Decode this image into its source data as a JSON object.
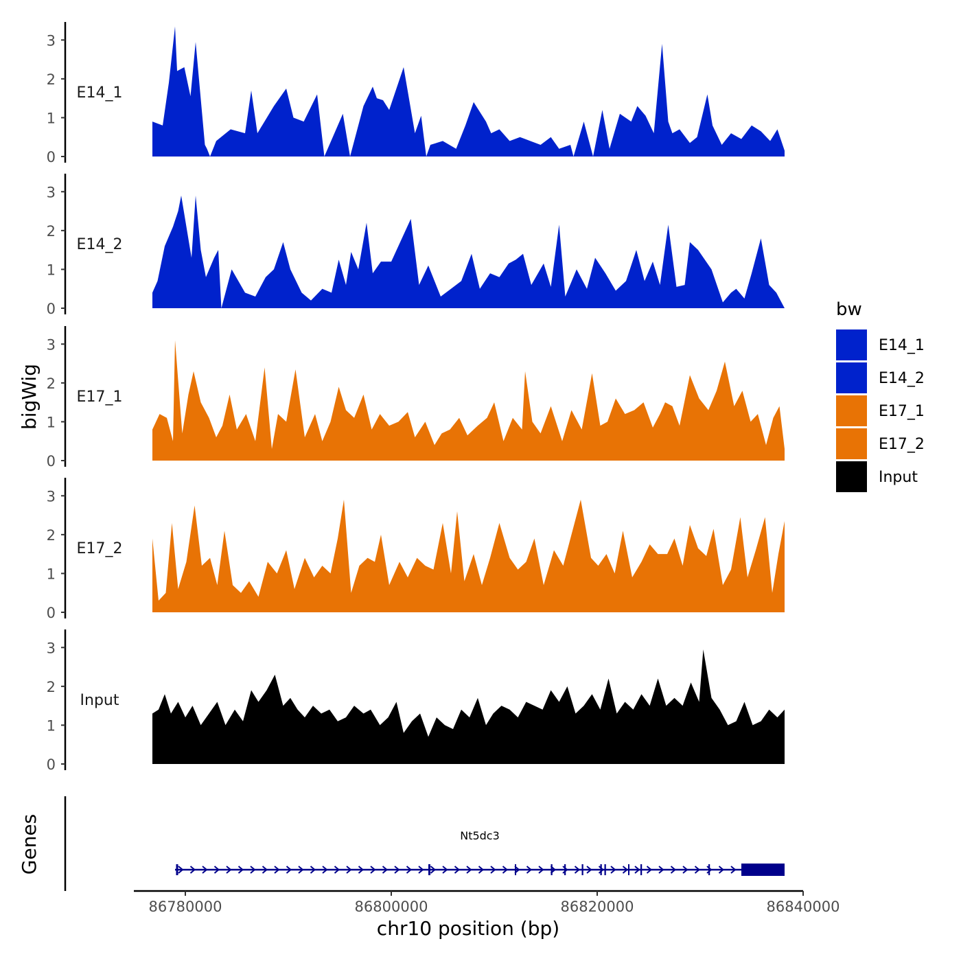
{
  "chart_data": {
    "type": "area",
    "title": "",
    "ylabel": "bigWig",
    "xlabel": "chr10 position (bp)",
    "genes_label": "Genes",
    "xlim": [
      86775000,
      86840000
    ],
    "data_range": [
      86776800,
      86838200
    ],
    "ylim": [
      0,
      3.5
    ],
    "y_ticks": [
      0,
      1,
      2,
      3
    ],
    "y_tick_labels": [
      "0",
      "1",
      "2",
      "3"
    ],
    "x_ticks": [
      86780000,
      86800000,
      86820000,
      86840000
    ],
    "x_tick_labels": [
      "86780000",
      "86800000",
      "86820000",
      "86840000"
    ],
    "legend": {
      "title": "bw",
      "placement": "right",
      "entries": [
        {
          "label": "E14_1",
          "color": "#0022CC"
        },
        {
          "label": "E14_2",
          "color": "#0022CC"
        },
        {
          "label": "E17_1",
          "color": "#E87305"
        },
        {
          "label": "E17_2",
          "color": "#E87305"
        },
        {
          "label": "Input",
          "color": "#000000"
        }
      ]
    },
    "series": [
      {
        "name": "E14_1",
        "color": "#0022CC",
        "x": [
          86776800,
          86777800,
          86778400,
          86779000,
          86779200,
          86779900,
          86780500,
          86781000,
          86781900,
          86782100,
          86782400,
          86783000,
          86784400,
          86785800,
          86786400,
          86787000,
          86788600,
          86789800,
          86790500,
          86791500,
          86792800,
          86793500,
          86795300,
          86796000,
          86797300,
          86798200,
          86798600,
          86799200,
          86799800,
          86801200,
          86802300,
          86802900,
          86803400,
          86803800,
          86805000,
          86806300,
          86807200,
          86808000,
          86809200,
          86809700,
          86810500,
          86811500,
          86812500,
          86813500,
          86814500,
          86815500,
          86816300,
          86817400,
          86817700,
          86818700,
          86819600,
          86820500,
          86821200,
          86822200,
          86823300,
          86823900,
          86824700,
          86825500,
          86826300,
          86826900,
          86827300,
          86828000,
          86829000,
          86829700,
          86830700,
          86831200,
          86832100,
          86833000,
          86834000,
          86835000,
          86835900,
          86836800,
          86837500,
          86838200
        ],
        "values": [
          0.9,
          0.8,
          1.9,
          3.35,
          2.2,
          2.3,
          1.55,
          2.95,
          0.3,
          0.2,
          0.0,
          0.4,
          0.7,
          0.6,
          1.7,
          0.6,
          1.3,
          1.75,
          1.0,
          0.9,
          1.6,
          0.0,
          1.1,
          0.0,
          1.3,
          1.8,
          1.5,
          1.45,
          1.2,
          2.3,
          0.6,
          1.05,
          0.0,
          0.3,
          0.4,
          0.2,
          0.8,
          1.4,
          0.9,
          0.6,
          0.7,
          0.4,
          0.5,
          0.4,
          0.3,
          0.5,
          0.2,
          0.3,
          0.0,
          0.9,
          0.0,
          1.2,
          0.2,
          1.1,
          0.9,
          1.3,
          1.05,
          0.6,
          2.9,
          0.9,
          0.6,
          0.7,
          0.35,
          0.5,
          1.6,
          0.8,
          0.3,
          0.6,
          0.45,
          0.8,
          0.65,
          0.4,
          0.7,
          0.15
        ]
      },
      {
        "name": "E14_2",
        "color": "#0022CC",
        "x": [
          86776800,
          86777300,
          86778000,
          86778800,
          86779300,
          86779600,
          86780600,
          86781000,
          86781500,
          86782000,
          86782800,
          86783200,
          86783500,
          86784500,
          86785800,
          86786800,
          86787800,
          86788600,
          86789500,
          86790200,
          86791300,
          86792200,
          86793300,
          86794200,
          86794900,
          86795600,
          86796100,
          86796800,
          86797600,
          86798200,
          86799000,
          86800000,
          86801900,
          86802700,
          86803600,
          86804800,
          86805800,
          86806800,
          86807800,
          86808600,
          86809600,
          86810500,
          86811400,
          86812100,
          86812800,
          86813600,
          86814800,
          86815500,
          86816300,
          86816900,
          86818000,
          86819000,
          86819800,
          86820800,
          86821800,
          86822800,
          86823800,
          86824600,
          86825400,
          86826100,
          86826900,
          86827700,
          86828500,
          86829000,
          86829800,
          86831100,
          86832200,
          86833000,
          86833500,
          86834300,
          86835000,
          86835900,
          86836700,
          86837400,
          86838200
        ],
        "values": [
          0.4,
          0.7,
          1.6,
          2.1,
          2.5,
          2.9,
          1.3,
          2.9,
          1.5,
          0.8,
          1.3,
          1.5,
          0.0,
          1.0,
          0.4,
          0.3,
          0.8,
          1.0,
          1.7,
          1.0,
          0.4,
          0.2,
          0.5,
          0.4,
          1.25,
          0.6,
          1.45,
          1.0,
          2.2,
          0.9,
          1.2,
          1.2,
          2.3,
          0.6,
          1.1,
          0.3,
          0.5,
          0.7,
          1.4,
          0.5,
          0.9,
          0.8,
          1.15,
          1.25,
          1.4,
          0.6,
          1.15,
          0.55,
          2.15,
          0.3,
          1.0,
          0.5,
          1.3,
          0.9,
          0.45,
          0.7,
          1.5,
          0.7,
          1.2,
          0.6,
          2.15,
          0.55,
          0.6,
          1.7,
          1.5,
          1.0,
          0.15,
          0.4,
          0.5,
          0.25,
          0.9,
          1.8,
          0.6,
          0.4,
          0.0
        ]
      },
      {
        "name": "E17_1",
        "color": "#E87305",
        "x": [
          86776800,
          86777500,
          86778200,
          86778800,
          86779000,
          86779700,
          86780300,
          86780800,
          86781500,
          86782300,
          86783000,
          86783600,
          86784300,
          86785000,
          86785900,
          86786800,
          86787700,
          86788400,
          86789000,
          86789800,
          86790700,
          86791600,
          86792600,
          86793300,
          86794100,
          86794900,
          86795600,
          86796400,
          86797300,
          86798100,
          86798900,
          86799800,
          86800700,
          86801600,
          86802300,
          86803300,
          86804200,
          86804900,
          86805700,
          86806600,
          86807400,
          86808400,
          86809300,
          86810000,
          86810900,
          86811800,
          86812700,
          86813000,
          86813700,
          86814500,
          86815500,
          86816600,
          86817500,
          86818500,
          86819500,
          86820300,
          86821000,
          86821800,
          86822700,
          86823600,
          86824500,
          86825400,
          86826100,
          86826600,
          86827300,
          86828000,
          86829000,
          86829900,
          86830800,
          86831600,
          86832400,
          86833300,
          86834100,
          86834900,
          86835600,
          86836400,
          86837100,
          86837700,
          86838200
        ],
        "values": [
          0.8,
          1.2,
          1.1,
          0.5,
          3.1,
          0.7,
          1.7,
          2.3,
          1.5,
          1.1,
          0.6,
          0.9,
          1.7,
          0.8,
          1.2,
          0.5,
          2.4,
          0.3,
          1.2,
          1.0,
          2.35,
          0.6,
          1.2,
          0.5,
          1.0,
          1.9,
          1.3,
          1.1,
          1.7,
          0.8,
          1.2,
          0.9,
          1.0,
          1.25,
          0.6,
          1.0,
          0.4,
          0.7,
          0.8,
          1.1,
          0.65,
          0.9,
          1.1,
          1.5,
          0.5,
          1.1,
          0.8,
          2.3,
          1.0,
          0.7,
          1.4,
          0.5,
          1.3,
          0.8,
          2.25,
          0.9,
          1.0,
          1.6,
          1.2,
          1.3,
          1.5,
          0.85,
          1.2,
          1.5,
          1.4,
          0.9,
          2.2,
          1.6,
          1.3,
          1.8,
          2.55,
          1.4,
          1.8,
          1.0,
          1.2,
          0.4,
          1.1,
          1.4,
          0.3
        ]
      },
      {
        "name": "E17_2",
        "color": "#E87305",
        "x": [
          86776800,
          86777400,
          86778100,
          86778700,
          86779300,
          86780100,
          86780900,
          86781600,
          86782400,
          86783100,
          86783800,
          86784600,
          86785400,
          86786200,
          86787100,
          86788000,
          86788900,
          86789800,
          86790600,
          86791600,
          86792500,
          86793300,
          86794100,
          86794800,
          86795400,
          86796100,
          86796900,
          86797700,
          86798400,
          86799000,
          86799800,
          86800800,
          86801600,
          86802500,
          86803300,
          86804100,
          86805000,
          86805800,
          86806400,
          86807100,
          86808000,
          86808800,
          86809600,
          86810500,
          86811500,
          86812300,
          86813100,
          86813900,
          86814800,
          86815800,
          86816700,
          86817500,
          86818400,
          86819400,
          86820100,
          86820900,
          86821700,
          86822500,
          86823400,
          86824300,
          86825100,
          86825900,
          86826800,
          86827500,
          86828300,
          86829000,
          86829800,
          86830600,
          86831300,
          86832200,
          86833000,
          86833900,
          86834600,
          86835400,
          86836300,
          86837000,
          86837600,
          86838200
        ],
        "values": [
          1.9,
          0.3,
          0.5,
          2.3,
          0.6,
          1.3,
          2.75,
          1.2,
          1.4,
          0.7,
          2.1,
          0.7,
          0.5,
          0.8,
          0.4,
          1.3,
          1.0,
          1.6,
          0.6,
          1.4,
          0.9,
          1.2,
          1.0,
          1.9,
          2.9,
          0.5,
          1.2,
          1.4,
          1.3,
          2.0,
          0.7,
          1.3,
          0.9,
          1.4,
          1.2,
          1.1,
          2.3,
          1.0,
          2.6,
          0.8,
          1.5,
          0.7,
          1.4,
          2.3,
          1.4,
          1.1,
          1.3,
          1.9,
          0.7,
          1.6,
          1.2,
          2.0,
          2.9,
          1.4,
          1.2,
          1.5,
          1.0,
          2.1,
          0.9,
          1.3,
          1.75,
          1.5,
          1.5,
          1.9,
          1.2,
          2.25,
          1.65,
          1.45,
          2.15,
          0.7,
          1.1,
          2.45,
          0.9,
          1.6,
          2.45,
          0.5,
          1.5,
          2.35
        ]
      },
      {
        "name": "Input",
        "color": "#000000",
        "x": [
          86776800,
          86777400,
          86778000,
          86778600,
          86779300,
          86780000,
          86780700,
          86781500,
          86782300,
          86783100,
          86783900,
          86784800,
          86785600,
          86786400,
          86787100,
          86787900,
          86788700,
          86789500,
          86790200,
          86790900,
          86791600,
          86792400,
          86793200,
          86794000,
          86794800,
          86795600,
          86796400,
          86797300,
          86798000,
          86798900,
          86799700,
          86800500,
          86801200,
          86802000,
          86802800,
          86803600,
          86804400,
          86805200,
          86806000,
          86806800,
          86807600,
          86808400,
          86809200,
          86809900,
          86810700,
          86811500,
          86812300,
          86813100,
          86813900,
          86814700,
          86815500,
          86816300,
          86817100,
          86817900,
          86818700,
          86819500,
          86820300,
          86821100,
          86821900,
          86822700,
          86823500,
          86824300,
          86825100,
          86825900,
          86826700,
          86827500,
          86828300,
          86829100,
          86829900,
          86830300,
          86831100,
          86831900,
          86832700,
          86833500,
          86834300,
          86835100,
          86835900,
          86836700,
          86837500,
          86838200
        ],
        "values": [
          1.3,
          1.4,
          1.8,
          1.3,
          1.6,
          1.2,
          1.5,
          1.0,
          1.3,
          1.6,
          1.0,
          1.4,
          1.1,
          1.9,
          1.6,
          1.9,
          2.3,
          1.5,
          1.7,
          1.4,
          1.2,
          1.5,
          1.3,
          1.4,
          1.1,
          1.2,
          1.5,
          1.3,
          1.4,
          1.0,
          1.2,
          1.6,
          0.8,
          1.1,
          1.3,
          0.7,
          1.2,
          1.0,
          0.9,
          1.4,
          1.2,
          1.7,
          1.0,
          1.3,
          1.5,
          1.4,
          1.2,
          1.6,
          1.5,
          1.4,
          1.9,
          1.6,
          2.0,
          1.3,
          1.5,
          1.8,
          1.4,
          2.2,
          1.3,
          1.6,
          1.4,
          1.8,
          1.5,
          2.2,
          1.5,
          1.7,
          1.5,
          2.1,
          1.6,
          2.95,
          1.7,
          1.4,
          1.0,
          1.1,
          1.6,
          1.0,
          1.1,
          1.4,
          1.2,
          1.4
        ]
      }
    ],
    "gene_track": {
      "gene_name": "Nt5dc3",
      "color": "#00008B",
      "strand": "+",
      "start": 86779000,
      "end": 86838200,
      "exons": [
        {
          "start": 86779100,
          "end": 86779300
        },
        {
          "start": 86803600,
          "end": 86803800
        },
        {
          "start": 86812000,
          "end": 86812100
        },
        {
          "start": 86815500,
          "end": 86815650
        },
        {
          "start": 86816800,
          "end": 86816950
        },
        {
          "start": 86818500,
          "end": 86818650
        },
        {
          "start": 86820300,
          "end": 86820450
        },
        {
          "start": 86820700,
          "end": 86820850
        },
        {
          "start": 86823000,
          "end": 86823100
        },
        {
          "start": 86824200,
          "end": 86824350
        },
        {
          "start": 86830800,
          "end": 86830950
        },
        {
          "start": 86834000,
          "end": 86838200
        }
      ]
    }
  }
}
